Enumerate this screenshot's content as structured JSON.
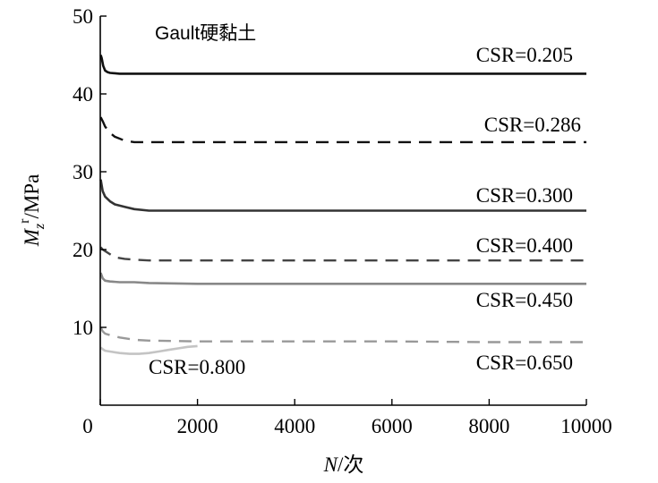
{
  "chart_data": {
    "type": "line",
    "title": "Gault硬黏土",
    "xlabel": {
      "italic": "N",
      "rest": "/次"
    },
    "ylabel": {
      "M": "M",
      "sub": "z",
      "sup": "r",
      "rest": "/MPa"
    },
    "xlim": [
      0,
      10000
    ],
    "ylim": [
      0,
      50
    ],
    "xticks": [
      0,
      2000,
      4000,
      6000,
      8000,
      10000
    ],
    "yticks": [
      10,
      20,
      30,
      40,
      50
    ],
    "ytick_labels": [
      "10",
      "20",
      "30",
      "40",
      "50"
    ],
    "xtick_labels": [
      "0",
      "2000",
      "4000",
      "6000",
      "8000",
      "10000"
    ],
    "grid": false,
    "series": [
      {
        "name": "CSR=0.205",
        "color": "#111111",
        "dash": "solid",
        "width": 2.6,
        "x": [
          10,
          30,
          60,
          100,
          150,
          200,
          400,
          1000,
          2000,
          4000,
          6000,
          8000,
          10000
        ],
        "y": [
          45,
          44.6,
          43.6,
          43,
          42.8,
          42.7,
          42.6,
          42.6,
          42.6,
          42.6,
          42.6,
          42.6,
          42.6
        ]
      },
      {
        "name": "CSR=0.286",
        "color": "#111111",
        "dash": "dashed",
        "width": 2.4,
        "x": [
          10,
          50,
          100,
          200,
          300,
          500,
          700,
          1000,
          2000,
          4000,
          6000,
          8000,
          10000
        ],
        "y": [
          37,
          36.5,
          35.8,
          35,
          34.5,
          34,
          33.8,
          33.8,
          33.8,
          33.8,
          33.8,
          33.8,
          33.8
        ]
      },
      {
        "name": "CSR=0.300",
        "color": "#333333",
        "dash": "solid",
        "width": 2.6,
        "x": [
          10,
          50,
          100,
          200,
          300,
          500,
          700,
          1000,
          2000,
          4000,
          6000,
          8000,
          10000
        ],
        "y": [
          29,
          27.5,
          26.8,
          26.2,
          25.8,
          25.5,
          25.2,
          25,
          25,
          25,
          25,
          25,
          25
        ]
      },
      {
        "name": "CSR=0.400",
        "color": "#444444",
        "dash": "dashed",
        "width": 2.4,
        "x": [
          10,
          50,
          100,
          200,
          300,
          500,
          700,
          1000,
          2000,
          4000,
          6000,
          8000,
          10000
        ],
        "y": [
          20.3,
          20,
          19.8,
          19.4,
          19,
          18.8,
          18.7,
          18.6,
          18.6,
          18.6,
          18.6,
          18.6,
          18.6
        ]
      },
      {
        "name": "CSR=0.450",
        "color": "#888888",
        "dash": "solid",
        "width": 2.6,
        "x": [
          10,
          50,
          100,
          200,
          400,
          700,
          1000,
          2000,
          4000,
          6000,
          8000,
          10000
        ],
        "y": [
          17,
          16.3,
          16,
          15.9,
          15.8,
          15.8,
          15.7,
          15.6,
          15.6,
          15.6,
          15.6,
          15.6
        ]
      },
      {
        "name": "CSR=0.650",
        "color": "#999999",
        "dash": "dashed",
        "width": 2.4,
        "x": [
          10,
          50,
          100,
          200,
          400,
          700,
          1000,
          2000,
          4000,
          6000,
          8000,
          10000
        ],
        "y": [
          10,
          9.5,
          9.2,
          9,
          8.7,
          8.4,
          8.3,
          8.2,
          8.2,
          8.2,
          8.1,
          8.1
        ]
      },
      {
        "name": "CSR=0.800",
        "color": "#c4c4c4",
        "dash": "solid",
        "width": 2.6,
        "x": [
          10,
          50,
          100,
          200,
          400,
          600,
          800,
          1000,
          1200,
          1400,
          1600,
          1800,
          2000
        ],
        "y": [
          7.4,
          7.2,
          7.0,
          6.9,
          6.7,
          6.6,
          6.6,
          6.7,
          6.9,
          7.1,
          7.3,
          7.5,
          7.6
        ]
      }
    ]
  }
}
